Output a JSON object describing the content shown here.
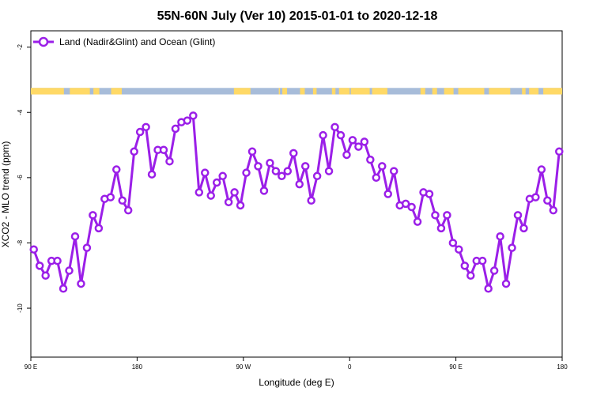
{
  "chart_data": {
    "type": "line",
    "title": "55N-60N July (Ver 10)   2015-01-01 to 2020-12-18",
    "xlabel": "Longitude (deg E)",
    "ylabel": "XCO2 - MLO trend (ppm)",
    "x_ticks": [
      {
        "value": 90,
        "label": "90 E"
      },
      {
        "value": 180,
        "label": "180"
      },
      {
        "value": 270,
        "label": "90 W"
      },
      {
        "value": 360,
        "label": "0"
      },
      {
        "value": 450,
        "label": "90 E"
      },
      {
        "value": 540,
        "label": "180"
      }
    ],
    "y_ticks": [
      -10,
      -8,
      -6,
      -4,
      -2
    ],
    "xlim": [
      90,
      540
    ],
    "ylim": [
      -11.5,
      -1.5
    ],
    "grid": false,
    "legend_position": "top-left",
    "colors": {
      "series": "#9b1fe8",
      "land": "#ffd966",
      "ocean": "#a7bcd9"
    },
    "series": [
      {
        "name": "Land (Nadir&Glint) and Ocean (Glint)",
        "x": [
          92.5,
          97.5,
          102.5,
          107.5,
          112.5,
          117.5,
          122.5,
          127.5,
          132.5,
          137.5,
          142.5,
          147.5,
          152.5,
          157.5,
          162.5,
          167.5,
          172.5,
          177.5,
          182.5,
          187.5,
          192.5,
          197.5,
          202.5,
          207.5,
          212.5,
          217.5,
          222.5,
          227.5,
          232.5,
          237.5,
          242.5,
          247.5,
          252.5,
          257.5,
          262.5,
          267.5,
          272.5,
          277.5,
          282.5,
          287.5,
          292.5,
          297.5,
          302.5,
          307.5,
          312.5,
          317.5,
          322.5,
          327.5,
          332.5,
          337.5,
          342.5,
          347.5,
          352.5,
          357.5,
          362.5,
          367.5,
          372.5,
          377.5,
          382.5,
          387.5,
          392.5,
          397.5,
          402.5,
          407.5,
          412.5,
          417.5,
          422.5,
          427.5,
          432.5,
          437.5,
          442.5,
          447.5,
          452.5,
          457.5,
          462.5,
          467.5,
          472.5,
          477.5,
          482.5,
          487.5,
          492.5,
          497.5,
          502.5,
          507.5,
          512.5,
          517.5,
          522.5,
          527.5,
          532.5,
          537.5
        ],
        "y": [
          -8.2,
          -8.7,
          -9.0,
          -8.55,
          -8.55,
          -9.4,
          -8.85,
          -7.8,
          -9.25,
          -8.15,
          -7.15,
          -7.55,
          -6.65,
          -6.6,
          -5.75,
          -6.7,
          -7.0,
          -5.2,
          -4.6,
          -4.45,
          -5.9,
          -5.15,
          -5.15,
          -5.5,
          -4.5,
          -4.3,
          -4.25,
          -4.1,
          -6.45,
          -5.85,
          -6.55,
          -6.15,
          -5.95,
          -6.75,
          -6.45,
          -6.85,
          -5.85,
          -5.2,
          -5.65,
          -6.4,
          -5.55,
          -5.8,
          -5.95,
          -5.8,
          -5.25,
          -6.2,
          -5.65,
          -6.7,
          -5.95,
          -4.7,
          -5.8,
          -4.45,
          -4.7,
          -5.3,
          -4.85,
          -5.05,
          -4.9,
          -5.45,
          -6.0,
          -5.65,
          -6.5,
          -5.8,
          -6.85,
          -6.8,
          -6.9,
          -7.35,
          -6.45,
          -6.5,
          -7.15,
          -7.55,
          -7.15,
          -8.0,
          -8.2,
          -8.7,
          -9.0,
          -8.55,
          -8.55,
          -9.4,
          -8.85,
          -7.8,
          -9.25,
          -8.15,
          -7.15,
          -7.55,
          -6.65,
          -6.6,
          -5.75,
          -6.7,
          -7.0,
          -5.2
        ]
      }
    ],
    "map_strip": {
      "description": "land/ocean mask band along latitude 55N-60N",
      "y_range": [
        -3.45,
        -3.25
      ]
    }
  }
}
